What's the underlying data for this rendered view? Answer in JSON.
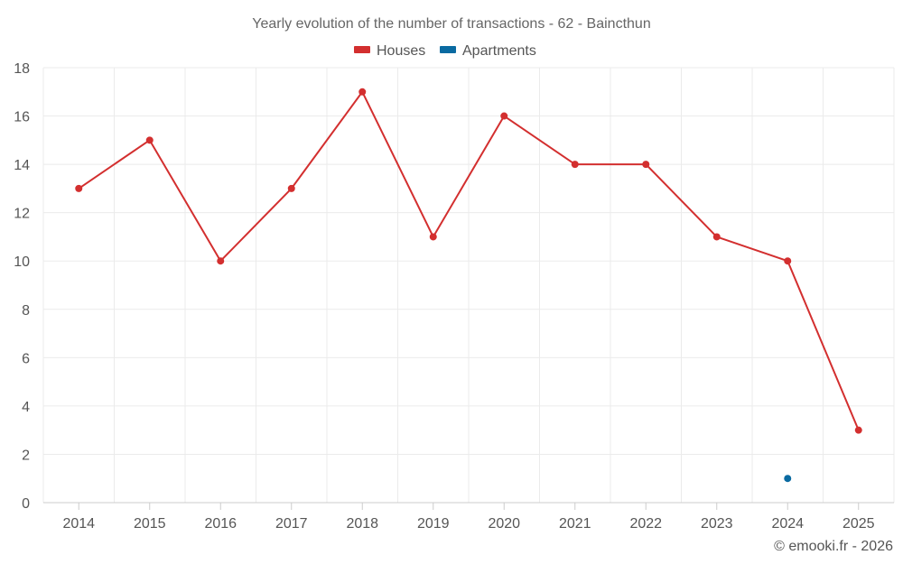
{
  "chart_data": {
    "type": "line",
    "title": "Yearly evolution of the number of transactions - 62 - Baincthun",
    "categories": [
      "2014",
      "2015",
      "2016",
      "2017",
      "2018",
      "2019",
      "2020",
      "2021",
      "2022",
      "2023",
      "2024",
      "2025"
    ],
    "ylim": [
      0,
      18
    ],
    "yticks": [
      0,
      2,
      4,
      6,
      8,
      10,
      12,
      14,
      16,
      18
    ],
    "grid": true,
    "legend_position": "top-center",
    "series": [
      {
        "name": "Houses",
        "color": "#d32f2f",
        "values": [
          13,
          15,
          10,
          13,
          17,
          11,
          16,
          14,
          14,
          11,
          10,
          3
        ]
      },
      {
        "name": "Apartments",
        "color": "#0a6aa1",
        "values": [
          null,
          null,
          null,
          null,
          null,
          null,
          null,
          null,
          null,
          null,
          1,
          null
        ]
      }
    ]
  },
  "credit": "© emooki.fr - 2026"
}
